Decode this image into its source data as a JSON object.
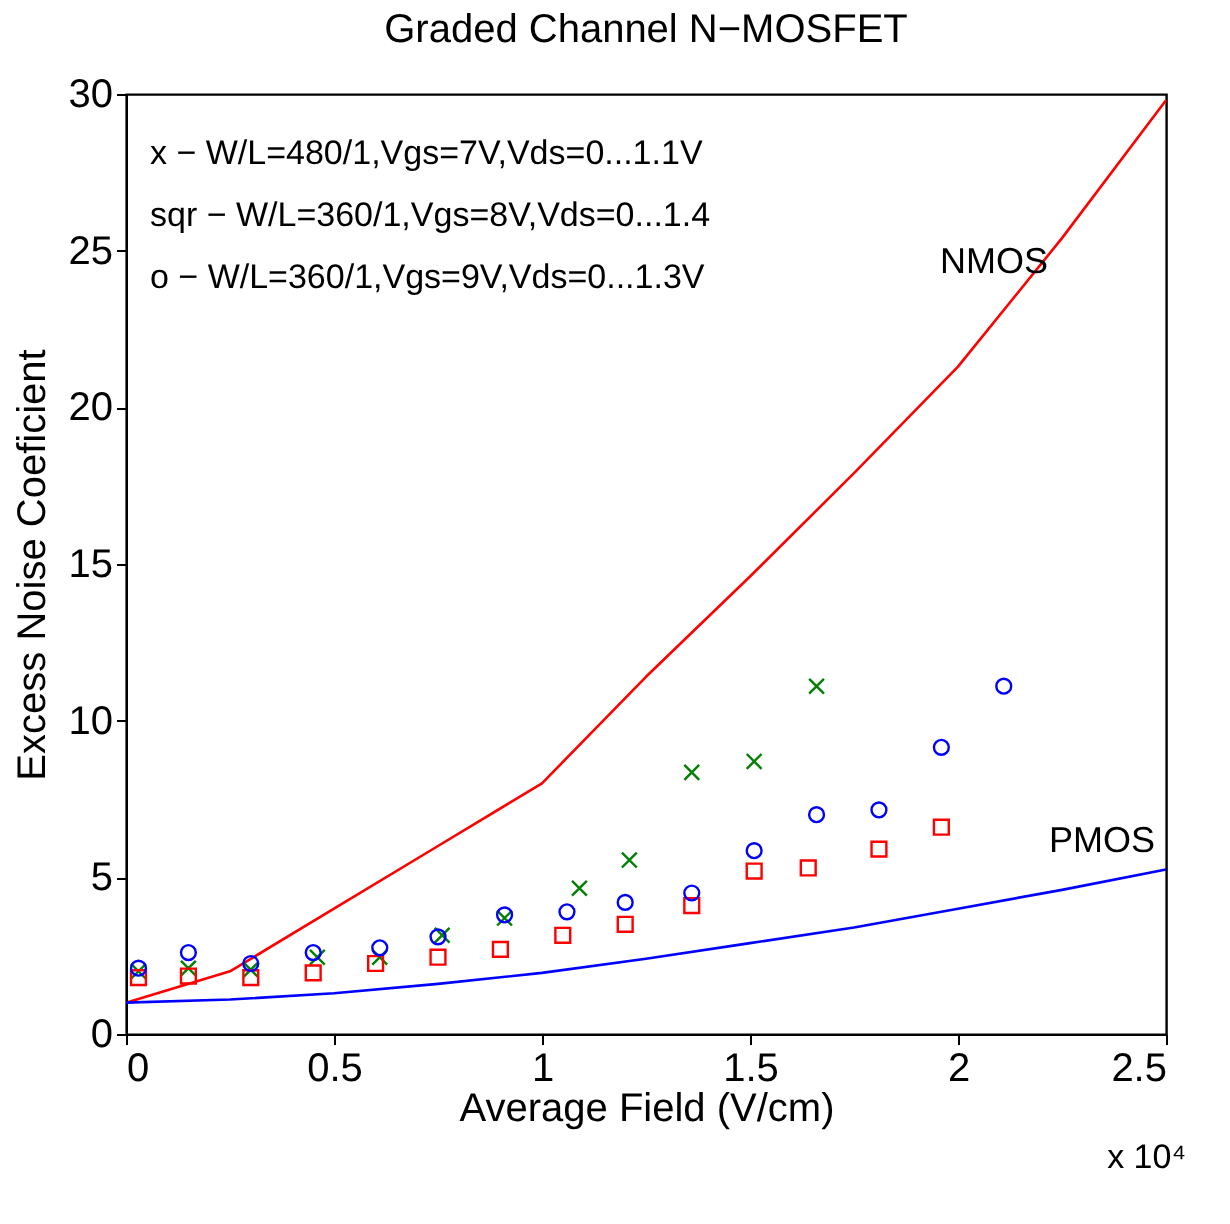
{
  "chart_data": {
    "type": "scatter",
    "title": "Graded Channel N−MOSFET",
    "xlabel": "Average Field (V/cm)",
    "ylabel": "Excess Noise Coeficient",
    "xlim": [
      0,
      2.5
    ],
    "ylim": [
      0,
      30
    ],
    "xticks": [
      0,
      0.5,
      1,
      1.5,
      2,
      2.5
    ],
    "yticks": [
      0,
      5,
      10,
      15,
      20,
      25,
      30
    ],
    "grid": false,
    "legend": false,
    "annotations": [
      "x − W/L=480/1,Vgs=7V,Vds=0...1.1V",
      "sqr − W/L=360/1,Vgs=8V,Vds=0...1.4",
      "o − W/L=360/1,Vgs=9V,Vds=0...1.3V",
      "x 10⁴"
    ],
    "series": [
      {
        "type": "line",
        "name": "NMOS",
        "color": "#ff0000",
        "line_style": "solid",
        "x": [
          0,
          0.25,
          0.5,
          0.75,
          1.0,
          1.25,
          1.5,
          1.75,
          2.0,
          2.25,
          2.5
        ],
        "values": [
          1.0,
          2.0,
          4.0,
          6.0,
          8.0,
          11.4,
          14.6,
          17.9,
          21.3,
          25.4,
          29.8
        ]
      },
      {
        "type": "line",
        "name": "PMOS",
        "color": "#0000ff",
        "line_style": "solid",
        "x": [
          0,
          0.25,
          0.5,
          0.75,
          1.0,
          1.25,
          1.5,
          1.75,
          2.0,
          2.25,
          2.5
        ],
        "values": [
          1.0,
          1.1,
          1.3,
          1.6,
          1.95,
          2.4,
          2.9,
          3.4,
          4.0,
          4.6,
          5.25
        ]
      },
      {
        "color": "#008000",
        "marker": "cross",
        "x": [
          0.03,
          0.15,
          0.3,
          0.46,
          0.61,
          0.76,
          0.91,
          1.09,
          1.21,
          1.36,
          1.51,
          1.66
        ],
        "values": [
          2.0,
          2.1,
          2.05,
          2.45,
          2.45,
          3.15,
          3.7,
          4.65,
          5.55,
          8.35,
          8.7,
          11.1
        ]
      },
      {
        "color": "#ff0000",
        "marker": "square",
        "x": [
          0.03,
          0.15,
          0.3,
          0.45,
          0.6,
          0.75,
          0.9,
          1.05,
          1.2,
          1.36,
          1.51,
          1.64,
          1.81,
          1.96
        ],
        "values": [
          1.8,
          1.85,
          1.8,
          1.95,
          2.25,
          2.45,
          2.7,
          3.15,
          3.5,
          4.1,
          5.2,
          5.3,
          5.9,
          6.6
        ]
      },
      {
        "color": "#0000ff",
        "marker": "circle",
        "x": [
          0.03,
          0.15,
          0.3,
          0.45,
          0.61,
          0.75,
          0.91,
          1.06,
          1.2,
          1.36,
          1.51,
          1.66,
          1.81,
          1.96,
          2.11
        ],
        "values": [
          2.1,
          2.6,
          2.25,
          2.6,
          2.75,
          3.1,
          3.8,
          3.9,
          4.2,
          4.5,
          5.85,
          7.0,
          7.15,
          9.15,
          11.1
        ]
      }
    ]
  }
}
